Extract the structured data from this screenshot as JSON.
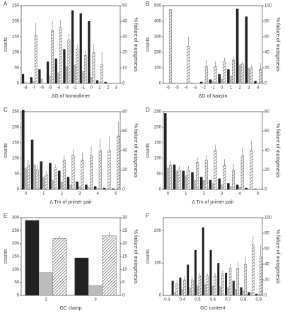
{
  "chart_data": [
    {
      "type": "bar",
      "label": "A",
      "xlabel": "ΔG of homodimer",
      "ylabel": "counts",
      "y2label": "% failure of mutagenesis",
      "categories": [
        "-8",
        "-7",
        "-6",
        "-5",
        "-4",
        "-3",
        "-2",
        "-1",
        "0",
        "1",
        "2",
        "3"
      ],
      "ylim": [
        0,
        250
      ],
      "yticks": [
        0,
        50,
        100,
        150,
        200,
        250
      ],
      "y2lim": [
        0,
        50
      ],
      "y2ticks": [
        0,
        10,
        20,
        30,
        40,
        50
      ],
      "series": [
        {
          "color": "#222222",
          "values": [
            30,
            20,
            45,
            70,
            80,
            110,
            235,
            225,
            200,
            10,
            5,
            0
          ]
        },
        {
          "color": "#bbbbbb",
          "values": [
            5,
            8,
            15,
            25,
            35,
            55,
            60,
            40,
            20,
            3,
            2,
            0
          ]
        },
        {
          "color": "#555555",
          "hatch": true,
          "axis": "y2",
          "values": [
            0,
            31,
            0,
            34,
            36,
            28,
            22,
            18,
            20,
            12,
            0,
            0
          ],
          "errors": [
            0,
            8,
            0,
            6,
            5,
            4,
            3,
            3,
            5,
            8,
            0,
            0
          ]
        }
      ]
    },
    {
      "type": "bar",
      "label": "B",
      "xlabel": "ΔG of hairpin",
      "ylabel": "counts",
      "y2label": "% failure of mutagenesis",
      "categories": [
        "-6",
        "-5",
        "-4",
        "-3",
        "-2",
        "-1",
        "0",
        "1",
        "2",
        "3",
        "4"
      ],
      "ylim": [
        0,
        500
      ],
      "yticks": [
        0,
        100,
        200,
        300,
        400,
        500
      ],
      "y2lim": [
        0,
        100
      ],
      "y2ticks": [
        0,
        20,
        40,
        60,
        80,
        100
      ],
      "series": [
        {
          "color": "#222222",
          "values": [
            0,
            0,
            0,
            2,
            10,
            25,
            60,
            90,
            480,
            430,
            15
          ]
        },
        {
          "color": "#bbbbbb",
          "values": [
            0,
            0,
            0,
            1,
            5,
            15,
            30,
            50,
            120,
            100,
            5
          ]
        },
        {
          "color": "#555555",
          "hatch": true,
          "axis": "y2",
          "values": [
            95,
            0,
            48,
            0,
            22,
            22,
            28,
            30,
            25,
            20,
            18
          ],
          "errors": [
            0,
            0,
            12,
            0,
            8,
            6,
            5,
            4,
            3,
            4,
            8
          ]
        }
      ]
    },
    {
      "type": "bar",
      "label": "C",
      "xlabel": "Δ Tm of primer pair",
      "ylabel": "counts",
      "y2label": "% failure of mutagenesis",
      "categories": [
        "0",
        null,
        "1",
        null,
        "2",
        null,
        "3",
        null,
        "4",
        null,
        "5"
      ],
      "ylim": [
        0,
        250
      ],
      "yticks": [
        0,
        50,
        100,
        150,
        200,
        250
      ],
      "y2lim": [
        0,
        80
      ],
      "y2ticks": [
        0,
        20,
        40,
        60,
        80
      ],
      "series": [
        {
          "color": "#222222",
          "values": [
            255,
            160,
            90,
            85,
            60,
            40,
            25,
            15,
            10,
            5,
            3
          ]
        },
        {
          "color": "#bbbbbb",
          "values": [
            70,
            80,
            40,
            30,
            25,
            15,
            10,
            8,
            5,
            3,
            2
          ]
        },
        {
          "color": "#555555",
          "hatch": true,
          "axis": "y2",
          "values": [
            25,
            20,
            15,
            22,
            30,
            35,
            30,
            35,
            40,
            40,
            55
          ],
          "errors": [
            5,
            5,
            4,
            4,
            5,
            6,
            8,
            10,
            12,
            15,
            15
          ]
        }
      ]
    },
    {
      "type": "bar",
      "label": "D",
      "xlabel": "Δ Tm of primer pair",
      "ylabel": "counts",
      "y2label": "% failure of mutagenesis",
      "categories": [
        "0",
        null,
        "1",
        null,
        "2",
        null,
        "3",
        null,
        "4",
        null,
        "5"
      ],
      "ylim": [
        0,
        250
      ],
      "yticks": [
        0,
        50,
        100,
        150,
        200,
        250
      ],
      "y2lim": [
        0,
        80
      ],
      "y2ticks": [
        0,
        20,
        40,
        60,
        80
      ],
      "series": [
        {
          "color": "#222222",
          "values": [
            245,
            80,
            60,
            55,
            40,
            30,
            35,
            20,
            15,
            5,
            2
          ]
        },
        {
          "color": "#bbbbbb",
          "values": [
            70,
            60,
            45,
            30,
            30,
            20,
            15,
            10,
            8,
            3,
            0
          ]
        },
        {
          "color": "#555555",
          "hatch": true,
          "axis": "y2",
          "values": [
            25,
            20,
            20,
            28,
            30,
            40,
            25,
            20,
            35,
            40,
            0
          ],
          "errors": [
            5,
            4,
            4,
            5,
            5,
            6,
            6,
            6,
            8,
            10,
            0
          ]
        }
      ]
    },
    {
      "type": "bar",
      "label": "E",
      "xlabel": "GC clamp",
      "ylabel": "counts",
      "y2label": "% failure of mutagenesis",
      "categories": [
        "2",
        "3"
      ],
      "ylim": [
        0,
        300
      ],
      "yticks": [
        0,
        50,
        100,
        150,
        200,
        250,
        300
      ],
      "y2lim": [
        0,
        30
      ],
      "y2ticks": [
        0,
        5,
        10,
        15,
        20,
        25,
        30
      ],
      "series": [
        {
          "color": "#222222",
          "values": [
            290,
            145
          ]
        },
        {
          "color": "#bbbbbb",
          "values": [
            90,
            40
          ]
        },
        {
          "color": "#555555",
          "hatch": true,
          "axis": "y2",
          "values": [
            22,
            23
          ],
          "errors": [
            1,
            1.5
          ]
        }
      ]
    },
    {
      "type": "bar",
      "label": "F",
      "xlabel": "GC content",
      "ylabel": "counts",
      "y2label": "% failure of mutagenesis",
      "categories": [
        "0.3",
        null,
        "0.4",
        null,
        "0.5",
        null,
        "0.6",
        null,
        "0.7",
        null,
        "0.8",
        null,
        "0.9"
      ],
      "ylim": [
        0,
        240
      ],
      "yticks": [
        0,
        100,
        200
      ],
      "y2lim": [
        0,
        100
      ],
      "y2ticks": [
        0,
        20,
        40,
        60,
        80,
        100
      ],
      "series": [
        {
          "color": "#222222",
          "values": [
            0,
            45,
            55,
            95,
            140,
            210,
            140,
            100,
            70,
            45,
            25,
            10,
            5
          ]
        },
        {
          "color": "#bbbbbb",
          "values": [
            0,
            10,
            20,
            25,
            30,
            35,
            30,
            28,
            25,
            20,
            15,
            10,
            5
          ]
        },
        {
          "color": "#555555",
          "hatch": true,
          "axis": "y2",
          "values": [
            0,
            15,
            20,
            20,
            25,
            25,
            25,
            28,
            35,
            35,
            40,
            65,
            50
          ],
          "errors": [
            0,
            5,
            5,
            4,
            4,
            3,
            4,
            4,
            6,
            8,
            10,
            12,
            15
          ]
        }
      ]
    }
  ]
}
